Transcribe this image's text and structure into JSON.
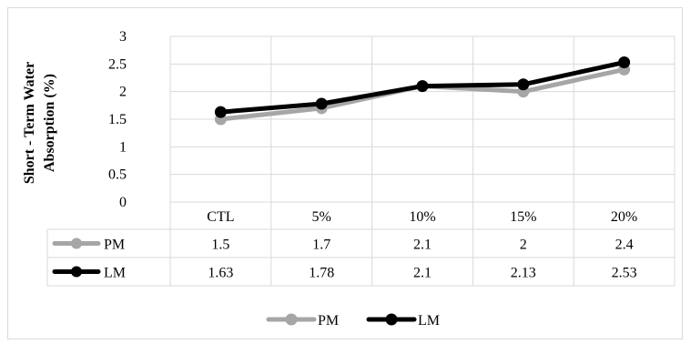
{
  "chart_data": {
    "type": "line",
    "categories": [
      "CTL",
      "5%",
      "10%",
      "15%",
      "20%"
    ],
    "series": [
      {
        "name": "PM",
        "values": [
          1.5,
          1.7,
          2.1,
          2,
          2.4
        ],
        "color": "#a6a6a6",
        "labels": [
          "1.5",
          "1.7",
          "2.1",
          "2",
          "2.4"
        ]
      },
      {
        "name": "LM",
        "values": [
          1.63,
          1.78,
          2.1,
          2.13,
          2.53
        ],
        "color": "#000000",
        "labels": [
          "1.63",
          "1.78",
          "2.1",
          "2.13",
          "2.53"
        ]
      }
    ],
    "ylabel_line1": "Short - Term Water",
    "ylabel_line2": "Absorption (%)",
    "ylim": [
      0,
      3
    ],
    "yticks": [
      "0",
      "0.5",
      "1",
      "1.5",
      "2",
      "2.5",
      "3"
    ],
    "grid": true,
    "data_table": true,
    "legend_position": "bottom"
  }
}
